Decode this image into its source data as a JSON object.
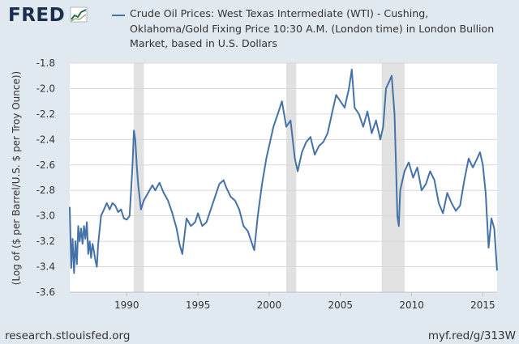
{
  "header": {
    "logo_text": "FRED",
    "logo_icon": "fred-chart-logo-icon"
  },
  "legend": {
    "series_label": "Crude Oil Prices: West Texas Intermediate (WTI) - Cushing, Oklahoma/Gold Fixing Price 10:30 A.M. (London time) in London Bullion Market, based in U.S. Dollars",
    "line_color": "#4572a7"
  },
  "footer": {
    "source": "research.stlouisfed.org",
    "short_url": "myf.red/g/313W"
  },
  "chart_data": {
    "type": "line",
    "title": "",
    "xlabel": "",
    "ylabel": "(Log of ($ per Barrel/U.S. $ per Troy Ounce))",
    "xlim": [
      1986.0,
      2016.0
    ],
    "ylim": [
      -3.6,
      -1.8
    ],
    "x_ticks": [
      "1990",
      "1995",
      "2000",
      "2005",
      "2010",
      "2015"
    ],
    "y_ticks": [
      "-1.8",
      "-2.0",
      "-2.2",
      "-2.4",
      "-2.6",
      "-2.8",
      "-3.0",
      "-3.2",
      "-3.4",
      "-3.6"
    ],
    "grid": true,
    "recessions": [
      [
        1990.5,
        1991.2
      ],
      [
        2001.2,
        2001.9
      ],
      [
        2007.9,
        2009.5
      ]
    ],
    "series": [
      {
        "color": "#4572a7",
        "x": [
          1986.0,
          1986.1,
          1986.2,
          1986.3,
          1986.4,
          1986.5,
          1986.6,
          1986.7,
          1986.8,
          1986.9,
          1987.0,
          1987.1,
          1987.2,
          1987.3,
          1987.4,
          1987.5,
          1987.6,
          1987.7,
          1987.8,
          1987.9,
          1988.0,
          1988.2,
          1988.4,
          1988.6,
          1988.8,
          1989.0,
          1989.2,
          1989.4,
          1989.6,
          1989.8,
          1990.0,
          1990.2,
          1990.4,
          1990.5,
          1990.6,
          1990.7,
          1990.8,
          1990.9,
          1991.0,
          1991.2,
          1991.5,
          1991.8,
          1992.0,
          1992.3,
          1992.6,
          1992.9,
          1993.2,
          1993.5,
          1993.7,
          1993.9,
          1994.2,
          1994.5,
          1994.8,
          1995.0,
          1995.3,
          1995.6,
          1995.9,
          1996.2,
          1996.5,
          1996.8,
          1997.0,
          1997.3,
          1997.6,
          1997.9,
          1998.2,
          1998.5,
          1998.8,
          1998.95,
          1999.2,
          1999.5,
          1999.8,
          2000.0,
          2000.3,
          2000.6,
          2000.9,
          2001.2,
          2001.5,
          2001.8,
          2002.0,
          2002.3,
          2002.6,
          2002.9,
          2003.2,
          2003.5,
          2003.8,
          2004.1,
          2004.4,
          2004.7,
          2005.0,
          2005.3,
          2005.6,
          2005.8,
          2006.0,
          2006.3,
          2006.6,
          2006.9,
          2007.2,
          2007.5,
          2007.8,
          2008.0,
          2008.2,
          2008.4,
          2008.6,
          2008.8,
          2008.9,
          2009.0,
          2009.1,
          2009.2,
          2009.5,
          2009.8,
          2010.1,
          2010.4,
          2010.7,
          2011.0,
          2011.3,
          2011.6,
          2011.9,
          2012.2,
          2012.5,
          2012.8,
          2013.1,
          2013.4,
          2013.7,
          2014.0,
          2014.3,
          2014.6,
          2014.8,
          2015.0,
          2015.2,
          2015.4,
          2015.6,
          2015.8,
          2016.0
        ],
        "values": [
          -2.93,
          -3.41,
          -3.18,
          -3.45,
          -3.2,
          -3.38,
          -3.08,
          -3.2,
          -3.1,
          -3.22,
          -3.08,
          -3.18,
          -3.05,
          -3.3,
          -3.2,
          -3.33,
          -3.22,
          -3.28,
          -3.35,
          -3.4,
          -3.22,
          -3.0,
          -2.95,
          -2.9,
          -2.95,
          -2.9,
          -2.92,
          -2.97,
          -2.95,
          -3.02,
          -3.03,
          -3.0,
          -2.62,
          -2.33,
          -2.4,
          -2.6,
          -2.75,
          -2.85,
          -2.95,
          -2.88,
          -2.82,
          -2.76,
          -2.8,
          -2.74,
          -2.82,
          -2.88,
          -2.98,
          -3.1,
          -3.22,
          -3.3,
          -3.02,
          -3.08,
          -3.05,
          -2.98,
          -3.08,
          -3.05,
          -2.95,
          -2.85,
          -2.75,
          -2.72,
          -2.78,
          -2.85,
          -2.88,
          -2.95,
          -3.08,
          -3.12,
          -3.22,
          -3.27,
          -3.0,
          -2.75,
          -2.55,
          -2.45,
          -2.3,
          -2.2,
          -2.1,
          -2.3,
          -2.25,
          -2.55,
          -2.65,
          -2.5,
          -2.42,
          -2.38,
          -2.52,
          -2.45,
          -2.42,
          -2.35,
          -2.2,
          -2.05,
          -2.1,
          -2.15,
          -2.0,
          -1.85,
          -2.15,
          -2.2,
          -2.3,
          -2.18,
          -2.35,
          -2.25,
          -2.4,
          -2.3,
          -2.0,
          -1.95,
          -1.9,
          -2.2,
          -2.6,
          -3.0,
          -3.08,
          -2.8,
          -2.65,
          -2.58,
          -2.7,
          -2.62,
          -2.8,
          -2.75,
          -2.65,
          -2.72,
          -2.9,
          -2.98,
          -2.82,
          -2.9,
          -2.96,
          -2.92,
          -2.72,
          -2.55,
          -2.62,
          -2.55,
          -2.5,
          -2.6,
          -2.82,
          -3.25,
          -3.02,
          -3.1,
          -3.43
        ]
      }
    ]
  }
}
